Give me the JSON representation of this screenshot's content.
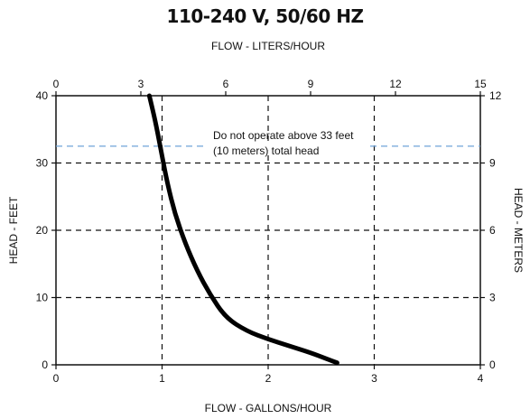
{
  "chart_data": {
    "type": "line",
    "title": "110-240 V, 50/60 HZ",
    "x_bottom": {
      "label": "FLOW - GALLONS/HOUR",
      "range": [
        0,
        4
      ],
      "ticks": [
        "0",
        "1",
        "2",
        "3",
        "4"
      ]
    },
    "x_top": {
      "label": "FLOW - LITERS/HOUR",
      "range": [
        0,
        15
      ],
      "ticks": [
        "0",
        "3",
        "6",
        "9",
        "12",
        "15"
      ]
    },
    "y_left": {
      "label": "HEAD - FEET",
      "range": [
        0,
        40
      ],
      "ticks": [
        "0",
        "10",
        "20",
        "30",
        "40"
      ]
    },
    "y_right": {
      "label": "HEAD - METERS",
      "range": [
        0,
        12
      ],
      "ticks": [
        "0",
        "3",
        "6",
        "9",
        "12"
      ]
    },
    "grid": true,
    "series": [
      {
        "x": [
          0.88,
          0.94,
          1.0,
          1.05,
          1.12,
          1.22,
          1.33,
          1.45,
          1.6,
          1.8,
          2.0,
          2.2,
          2.4,
          2.55,
          2.65
        ],
        "y": [
          40,
          36,
          31,
          27,
          22.5,
          18,
          14,
          10.5,
          7,
          5,
          3.8,
          2.8,
          1.8,
          0.9,
          0.3
        ]
      }
    ],
    "limit_line": {
      "y": 32.5,
      "color": "#6fa3d8",
      "note_lines": [
        "Do not operate above 33 feet",
        "(10 meters) total head"
      ]
    }
  }
}
